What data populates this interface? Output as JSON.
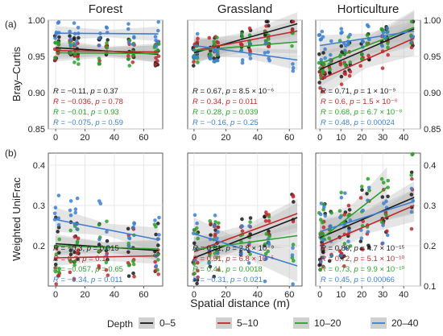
{
  "figure": {
    "panel_labels": [
      "(a)",
      "(b)"
    ],
    "x_axis_label": "Spatial distance (m)",
    "legend": {
      "title": "Depth",
      "position": "bottom"
    }
  },
  "depth_colors": {
    "0–5": "#1a1a1a",
    "5–10": "#c0282b",
    "10–20": "#2ca02c",
    "20–40": "#3d7fd1"
  },
  "chart_data": [
    {
      "type": "scatter",
      "panel": "(a)",
      "title": "Forest",
      "ylabel": "Bray–Curtis",
      "xlim": [
        -5,
        73
      ],
      "ylim": [
        0.85,
        1.0
      ],
      "x_ticks": [
        0,
        20,
        40,
        60
      ],
      "y_ticks": [
        0.85,
        0.9,
        0.95,
        1.0
      ],
      "y_tick_labels": [
        "0.85",
        "0.90",
        "0.95",
        "1.00"
      ],
      "grid": true,
      "points_x": [
        0,
        2,
        10,
        13,
        15,
        30,
        35,
        50,
        53,
        68,
        70
      ],
      "points_spread": 0.04,
      "series": [
        {
          "name": "0–5",
          "fit": [
            [
              0,
              0.962
            ],
            [
              70,
              0.953
            ]
          ],
          "stat_R": "−0.11",
          "stat_p": "0.37",
          "ci": 0.006
        },
        {
          "name": "5–10",
          "fit": [
            [
              0,
              0.958
            ],
            [
              70,
              0.956
            ]
          ],
          "stat_R": "−0.036",
          "stat_p": "0.78",
          "ci": 0.006
        },
        {
          "name": "10–20",
          "fit": [
            [
              0,
              0.955
            ],
            [
              70,
              0.954
            ]
          ],
          "stat_R": "−0.01",
          "stat_p": "0.93",
          "ci": 0.006
        },
        {
          "name": "20–40",
          "fit": [
            [
              0,
              0.982
            ],
            [
              70,
              0.981
            ]
          ],
          "stat_R": "−0.075",
          "stat_p": "0.59",
          "ci": 0.005
        }
      ]
    },
    {
      "type": "scatter",
      "panel": "(a)",
      "title": "Grassland",
      "ylabel": "",
      "xlim": [
        -4,
        68
      ],
      "ylim": [
        0.85,
        1.0
      ],
      "x_ticks": [
        0,
        20,
        40,
        60
      ],
      "y_ticks": [
        0.85,
        0.9,
        0.95,
        1.0
      ],
      "y_tick_labels": [],
      "grid": true,
      "points_x": [
        0,
        2,
        10,
        13,
        15,
        30,
        35,
        45,
        47,
        62
      ],
      "points_spread": 0.04,
      "series": [
        {
          "name": "0–5",
          "fit": [
            [
              0,
              0.955
            ],
            [
              65,
              0.995
            ]
          ],
          "stat_R": "0.67",
          "stat_p": "8.5 × 10⁻⁶",
          "ci": 0.008
        },
        {
          "name": "5–10",
          "fit": [
            [
              0,
              0.958
            ],
            [
              65,
              0.985
            ]
          ],
          "stat_R": "0.34",
          "stat_p": "0.011",
          "ci": 0.008
        },
        {
          "name": "10–20",
          "fit": [
            [
              0,
              0.958
            ],
            [
              65,
              0.97
            ]
          ],
          "stat_R": "0.28",
          "stat_p": "0.039",
          "ci": 0.008
        },
        {
          "name": "20–40",
          "fit": [
            [
              0,
              0.965
            ],
            [
              65,
              0.945
            ]
          ],
          "stat_R": "−0.16",
          "stat_p": "0.25",
          "ci": 0.007
        }
      ]
    },
    {
      "type": "scatter",
      "panel": "(a)",
      "title": "Horticulture",
      "ylabel": "",
      "xlim": [
        -2,
        48
      ],
      "ylim": [
        0.85,
        1.0
      ],
      "x_ticks": [
        0,
        10,
        20,
        30,
        40
      ],
      "y_ticks": [
        0.85,
        0.9,
        0.95,
        1.0
      ],
      "y_tick_labels": [
        "0.85",
        "0.90",
        "0.95",
        "1.00"
      ],
      "grid": true,
      "points_x": [
        0,
        1,
        2,
        5,
        10,
        12,
        14,
        20,
        23,
        30,
        32,
        44
      ],
      "points_spread": 0.05,
      "series": [
        {
          "name": "0–5",
          "fit": [
            [
              0,
              0.932
            ],
            [
              45,
              0.988
            ]
          ],
          "stat_R": "0.71",
          "stat_p": "1 × 10⁻⁹",
          "ci": 0.012
        },
        {
          "name": "5–10",
          "fit": [
            [
              0,
              0.918
            ],
            [
              45,
              0.975
            ]
          ],
          "stat_R": "0.6",
          "stat_p": "1.5 × 10⁻⁶",
          "ci": 0.012
        },
        {
          "name": "10–20",
          "fit": [
            [
              0,
              0.94
            ],
            [
              45,
              0.99
            ]
          ],
          "stat_R": "0.68",
          "stat_p": "6.7 × 10⁻⁸",
          "ci": 0.012
        },
        {
          "name": "20–40",
          "fit": [
            [
              0,
              0.965
            ],
            [
              45,
              0.985
            ]
          ],
          "stat_R": "0.48",
          "stat_p": "0.00024",
          "ci": 0.007
        }
      ]
    },
    {
      "type": "scatter",
      "panel": "(b)",
      "title": "",
      "ylabel": "Weighted UniFrac",
      "xlim": [
        -5,
        73
      ],
      "ylim": [
        0.1,
        0.43
      ],
      "x_ticks": [
        0,
        20,
        40,
        60
      ],
      "y_ticks": [
        0.2,
        0.3,
        0.4
      ],
      "y_tick_labels": [
        "0.2",
        "0.3",
        "0.4"
      ],
      "grid": true,
      "points_x": [
        0,
        2,
        10,
        13,
        15,
        30,
        35,
        50,
        53,
        68,
        70
      ],
      "points_spread": 0.07,
      "series": [
        {
          "name": "0–5",
          "fit": [
            [
              0,
              0.205
            ],
            [
              70,
              0.188
            ]
          ],
          "stat_R": "−0.3",
          "stat_p": "0.015",
          "ci": 0.012
        },
        {
          "name": "5–10",
          "fit": [
            [
              0,
              0.17
            ],
            [
              70,
              0.175
            ]
          ],
          "stat_R": "0.2",
          "stat_p": "0.11",
          "ci": 0.01
        },
        {
          "name": "10–20",
          "fit": [
            [
              0,
              0.2
            ],
            [
              70,
              0.192
            ]
          ],
          "stat_R": "−0.057",
          "stat_p": "0.65",
          "ci": 0.012
        },
        {
          "name": "20–40",
          "fit": [
            [
              0,
              0.265
            ],
            [
              70,
              0.215
            ]
          ],
          "stat_R": "−0.34",
          "stat_p": "0.011",
          "ci": 0.015
        }
      ]
    },
    {
      "type": "scatter",
      "panel": "(b)",
      "title": "",
      "ylabel": "",
      "xlim": [
        -4,
        68
      ],
      "ylim": [
        0.1,
        0.43
      ],
      "x_ticks": [
        0,
        20,
        40,
        60
      ],
      "y_ticks": [
        0.2,
        0.3,
        0.4
      ],
      "y_tick_labels": [],
      "grid": true,
      "points_x": [
        0,
        2,
        10,
        13,
        15,
        30,
        35,
        45,
        47,
        62
      ],
      "points_spread": 0.07,
      "series": [
        {
          "name": "0–5",
          "fit": [
            [
              0,
              0.17
            ],
            [
              65,
              0.27
            ]
          ],
          "stat_R": "0.81",
          "stat_p": "2.8 × 10⁻⁹",
          "ci": 0.018
        },
        {
          "name": "5–10",
          "fit": [
            [
              0,
              0.185
            ],
            [
              65,
              0.28
            ]
          ],
          "stat_R": "0.51",
          "stat_p": "6.8 × 10⁻⁵",
          "ci": 0.018
        },
        {
          "name": "10–20",
          "fit": [
            [
              0,
              0.19
            ],
            [
              65,
              0.225
            ]
          ],
          "stat_R": "0.41",
          "stat_p": "0.0018",
          "ci": 0.015
        },
        {
          "name": "20–40",
          "fit": [
            [
              0,
              0.23
            ],
            [
              65,
              0.15
            ]
          ],
          "stat_R": "−0.31",
          "stat_p": "0.021",
          "ci": 0.02
        }
      ]
    },
    {
      "type": "scatter",
      "panel": "(b)",
      "title": "",
      "ylabel": "",
      "xlim": [
        -2,
        48
      ],
      "ylim": [
        0.1,
        0.43
      ],
      "x_ticks": [
        0,
        10,
        20,
        30,
        40
      ],
      "y_ticks": [
        0.1,
        0.2,
        0.3,
        0.4
      ],
      "y_tick_labels": [
        "0.1",
        "0.2",
        "0.3",
        "0.4"
      ],
      "grid": true,
      "points_x": [
        0,
        1,
        2,
        5,
        10,
        12,
        14,
        20,
        23,
        30,
        32,
        44
      ],
      "points_spread": 0.08,
      "series": [
        {
          "name": "0–5",
          "fit": [
            [
              0,
              0.22
            ],
            [
              45,
              0.32
            ]
          ],
          "stat_R": "0.89",
          "stat_p": "4.7 × 10⁻¹⁵",
          "ci": 0.02
        },
        {
          "name": "5–10",
          "fit": [
            [
              0,
              0.2
            ],
            [
              45,
              0.3
            ]
          ],
          "stat_R": "0.72",
          "stat_p": "5.1 × 10⁻¹⁰",
          "ci": 0.02
        },
        {
          "name": "10–20",
          "fit": [
            [
              0,
              0.215
            ],
            [
              32,
              0.345
            ]
          ],
          "stat_R": "0.73",
          "stat_p": "9.9 × 10⁻¹⁰",
          "ci": 0.025
        },
        {
          "name": "20–40",
          "fit": [
            [
              0,
              0.235
            ],
            [
              45,
              0.31
            ]
          ],
          "stat_R": "0.45",
          "stat_p": "0.00066",
          "ci": 0.015
        }
      ]
    }
  ]
}
